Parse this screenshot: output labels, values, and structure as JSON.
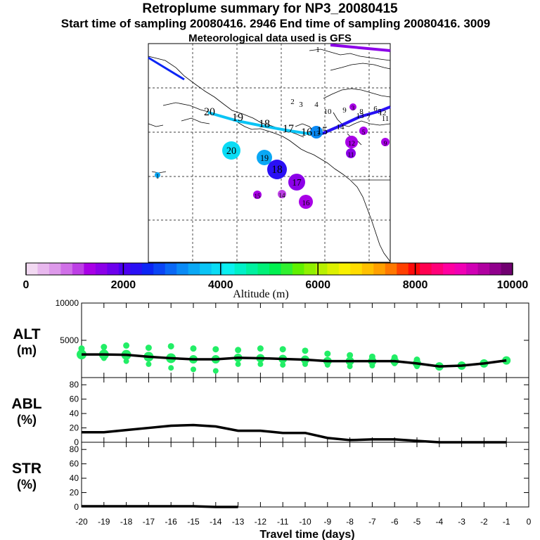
{
  "header": {
    "title": "Retroplume summary for NP3_20080415",
    "subtitle": "Start time of sampling 20080416.  2946     End time of sampling 20080416.  3009",
    "met": "Meteorological data used is GFS"
  },
  "map": {
    "plume_labels": [
      "20",
      "19",
      "18",
      "17",
      "16",
      "15",
      "14",
      "13",
      "12",
      "11",
      "10",
      "9",
      "8",
      "7",
      "6",
      "5",
      "4",
      "3",
      "2",
      "1"
    ],
    "blobs": [
      {
        "label": "20",
        "alt": 3900
      },
      {
        "label": "19",
        "alt": 3400
      },
      {
        "label": "18",
        "alt": 2200
      },
      {
        "label": "17",
        "alt": 1600
      },
      {
        "label": "16",
        "alt": 1200
      },
      {
        "label": "15",
        "alt": 1300
      },
      {
        "label": "14",
        "alt": 1000
      },
      {
        "label": "13",
        "alt": 3100
      },
      {
        "label": "12",
        "alt": 1400
      },
      {
        "label": "11",
        "alt": 1500
      },
      {
        "label": "9",
        "alt": 1200
      },
      {
        "label": "5",
        "alt": 1400
      },
      {
        "label": "3",
        "alt": 1300
      },
      {
        "label": "1",
        "alt": 3500
      }
    ]
  },
  "colorbar": {
    "tick_labels": [
      "0",
      "2000",
      "4000",
      "6000",
      "8000",
      "10000"
    ],
    "label": "Altitude (m)"
  },
  "colors": {
    "scale": [
      "#f2d9f2",
      "#e8b8ee",
      "#dd99ea",
      "#d070e8",
      "#bd3fe5",
      "#a800e6",
      "#8c00e8",
      "#6d00ec",
      "#4b00f0",
      "#2a10f5",
      "#0b25f5",
      "#0a45f5",
      "#0a68f5",
      "#0a8af5",
      "#0aa8f5",
      "#0ac4f5",
      "#0adcf5",
      "#0af0f0",
      "#00f0c8",
      "#00f0a0",
      "#00f078",
      "#00f050",
      "#30f030",
      "#60f000",
      "#90f000",
      "#b8f000",
      "#dcf000",
      "#f8f000",
      "#ffdc00",
      "#ffc000",
      "#ffa000",
      "#ff7800",
      "#ff4000",
      "#ff0a0a",
      "#ff0050",
      "#ff0078",
      "#ff00a0",
      "#f000b4",
      "#d000b4",
      "#b000a0",
      "#90008c",
      "#700070"
    ],
    "alt_dots": "#22ee66"
  },
  "chart_data": [
    {
      "type": "line",
      "panel": "ALT",
      "ylabel": "ALT (m)",
      "ylim": [
        0,
        10000
      ],
      "yticks": [
        5000,
        10000
      ],
      "x": [
        -20,
        -19,
        -18,
        -17,
        -16,
        -15,
        -14,
        -13,
        -12,
        -11,
        -10,
        -9,
        -8,
        -7,
        -6,
        -5,
        -4,
        -3,
        -2,
        -1
      ],
      "mean": [
        3100,
        3100,
        3050,
        2800,
        2600,
        2450,
        2450,
        2650,
        2600,
        2500,
        2400,
        2200,
        2200,
        2200,
        2200,
        1900,
        1500,
        1600,
        1900,
        2300
      ],
      "dots_high": [
        3900,
        4100,
        4300,
        4000,
        4200,
        3900,
        3800,
        3700,
        3900,
        3800,
        3600,
        3200,
        3000,
        2800,
        2700,
        2400,
        1600,
        1700,
        2000,
        2400
      ],
      "dots_low": [
        2900,
        2600,
        2200,
        1800,
        1300,
        1100,
        900,
        1800,
        1800,
        1700,
        1800,
        1700,
        1500,
        1600,
        1900,
        1500,
        1400,
        1500,
        1800,
        2200
      ]
    },
    {
      "type": "line",
      "panel": "ABL",
      "ylabel": "ABL (%)",
      "ylim": [
        0,
        90
      ],
      "yticks": [
        0,
        20,
        40,
        60,
        80
      ],
      "x": [
        -20,
        -19,
        -18,
        -17,
        -16,
        -15,
        -14,
        -13,
        -12,
        -11,
        -10,
        -9,
        -8,
        -7,
        -6,
        -5,
        -4,
        -3,
        -2,
        -1
      ],
      "values": [
        14,
        14,
        17,
        20,
        23,
        24,
        22,
        16,
        16,
        13,
        13,
        6,
        3,
        4,
        4,
        2,
        0,
        0,
        0,
        0
      ]
    },
    {
      "type": "line",
      "panel": "STR",
      "ylabel": "STR (%)",
      "ylim": [
        0,
        90
      ],
      "yticks": [
        0,
        20,
        40,
        60,
        80
      ],
      "x": [
        -20,
        -19,
        -18,
        -17,
        -16,
        -15,
        -14,
        -13
      ],
      "values": [
        1,
        1,
        1,
        1,
        1,
        1,
        0,
        0
      ]
    }
  ],
  "xaxis": {
    "tick_labels": [
      "-20",
      "-19",
      "-18",
      "-17",
      "-16",
      "-15",
      "-14",
      "-13",
      "-12",
      "-11",
      "-10",
      "-9",
      "-8",
      "-7",
      "-6",
      "-5",
      "-4",
      "-3",
      "-2",
      "-1",
      "0"
    ],
    "xlabel": "Travel time (days)"
  }
}
